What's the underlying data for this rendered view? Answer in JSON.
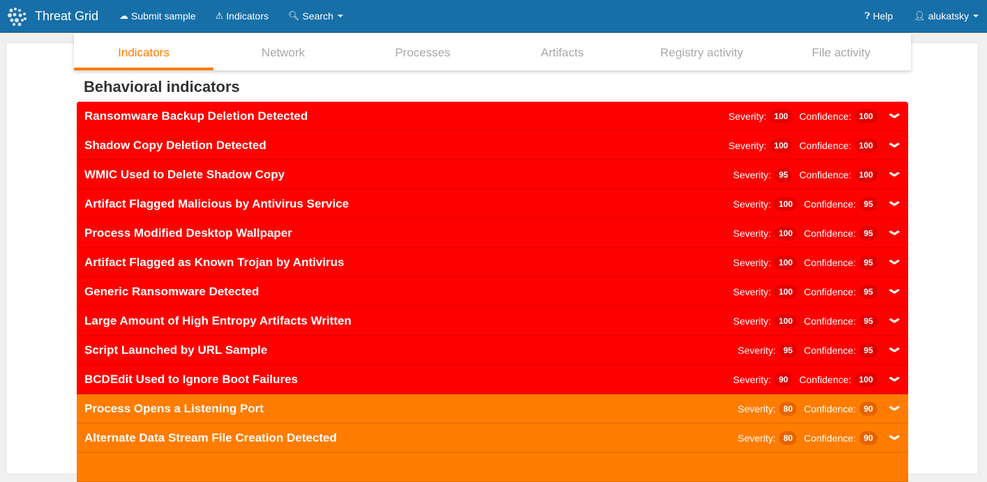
{
  "nav": {
    "brand": "Threat Grid",
    "submit": "Submit sample",
    "indicators": "Indicators",
    "search": "Search",
    "help": "Help",
    "user": "alukatsky"
  },
  "tabs": [
    "Indicators",
    "Network",
    "Processes",
    "Artifacts",
    "Registry activity",
    "File activity"
  ],
  "active_tab": "Indicators",
  "heading": "Behavioral indicators",
  "labels": {
    "severity": "Severity:",
    "confidence": "Confidence:"
  },
  "colors": {
    "critical": "#ff0000",
    "critical_badge": "#e00000",
    "high": "#ff7c00",
    "high_badge": "#e66400",
    "nav": "#176fa8"
  },
  "indicators": [
    {
      "title": "Ransomware Backup Deletion Detected",
      "severity": 100,
      "confidence": 100,
      "level": "critical"
    },
    {
      "title": "Shadow Copy Deletion Detected",
      "severity": 100,
      "confidence": 100,
      "level": "critical"
    },
    {
      "title": "WMIC Used to Delete Shadow Copy",
      "severity": 95,
      "confidence": 100,
      "level": "critical"
    },
    {
      "title": "Artifact Flagged Malicious by Antivirus Service",
      "severity": 100,
      "confidence": 95,
      "level": "critical"
    },
    {
      "title": "Process Modified Desktop Wallpaper",
      "severity": 100,
      "confidence": 95,
      "level": "critical"
    },
    {
      "title": "Artifact Flagged as Known Trojan by Antivirus",
      "severity": 100,
      "confidence": 95,
      "level": "critical"
    },
    {
      "title": "Generic Ransomware Detected",
      "severity": 100,
      "confidence": 95,
      "level": "critical"
    },
    {
      "title": "Large Amount of High Entropy Artifacts Written",
      "severity": 100,
      "confidence": 95,
      "level": "critical"
    },
    {
      "title": "Script Launched by URL Sample",
      "severity": 95,
      "confidence": 95,
      "level": "critical"
    },
    {
      "title": "BCDEdit Used to Ignore Boot Failures",
      "severity": 90,
      "confidence": 100,
      "level": "critical"
    },
    {
      "title": "Process Opens a Listening Port",
      "severity": 80,
      "confidence": 90,
      "level": "high"
    },
    {
      "title": "Alternate Data Stream File Creation Detected",
      "severity": 80,
      "confidence": 90,
      "level": "high"
    },
    {
      "title": "",
      "severity": null,
      "confidence": null,
      "level": "high"
    }
  ]
}
